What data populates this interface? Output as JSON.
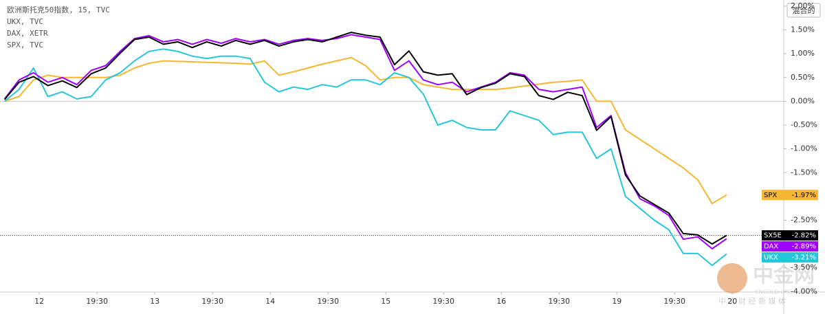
{
  "chart_data": {
    "type": "line",
    "toggle_label": "混合的",
    "watermark": {
      "brand": "中金网",
      "site": "CNGOLD.ORG",
      "slogan": "中 文 财 经 新 媒 体"
    },
    "xlim": [
      0.32,
      13.89
    ],
    "ylim": [
      -4.01,
      2.13
    ],
    "grid": false,
    "xticks": [
      {
        "value": 1,
        "label": "12"
      },
      {
        "value": 2,
        "label": "19:30"
      },
      {
        "value": 3,
        "label": "13"
      },
      {
        "value": 4,
        "label": "19:30"
      },
      {
        "value": 5,
        "label": "14"
      },
      {
        "value": 6,
        "label": "19:30"
      },
      {
        "value": 7,
        "label": "15"
      },
      {
        "value": 8,
        "label": "19:30"
      },
      {
        "value": 9,
        "label": "16"
      },
      {
        "value": 10,
        "label": "19:30"
      },
      {
        "value": 11,
        "label": "19"
      },
      {
        "value": 12,
        "label": "19:30"
      },
      {
        "value": 13,
        "label": "20"
      }
    ],
    "yticks": [
      {
        "value": 2,
        "label": "2.00%"
      },
      {
        "value": 1.5,
        "label": "1.50%"
      },
      {
        "value": 1,
        "label": "1.00%"
      },
      {
        "value": 0.5,
        "label": "0.50%"
      },
      {
        "value": 0,
        "label": "0.00%"
      },
      {
        "value": -0.5,
        "label": "-0.50%"
      },
      {
        "value": -1,
        "label": "-1.00%"
      },
      {
        "value": -1.5,
        "label": "-1.50%"
      },
      {
        "value": -2.5,
        "label": "-2.50%"
      },
      {
        "value": -3.5,
        "label": "-3.50%"
      },
      {
        "value": -4,
        "label": "-4.00%"
      }
    ],
    "x": [
      0.4,
      0.65,
      0.9,
      1.15,
      1.4,
      1.65,
      1.9,
      2.15,
      2.4,
      2.65,
      2.9,
      3.15,
      3.4,
      3.65,
      3.9,
      4.15,
      4.4,
      4.65,
      4.9,
      5.15,
      5.4,
      5.65,
      5.9,
      6.15,
      6.4,
      6.65,
      6.9,
      7.15,
      7.4,
      7.65,
      7.9,
      8.15,
      8.4,
      8.65,
      8.9,
      9.15,
      9.4,
      9.65,
      9.9,
      10.15,
      10.4,
      10.65,
      10.9,
      11.15,
      11.4,
      11.65,
      11.9,
      12.15,
      12.4,
      12.65,
      12.9
    ],
    "series": [
      {
        "name": "欧洲斯托克50指数, 15, TVC",
        "tag": "SX5E",
        "last_label": "-2.82%",
        "color": "#000000",
        "values": [
          0.04,
          0.4,
          0.52,
          0.33,
          0.43,
          0.29,
          0.58,
          0.7,
          1.01,
          1.3,
          1.35,
          1.2,
          1.25,
          1.13,
          1.25,
          1.16,
          1.28,
          1.2,
          1.28,
          1.16,
          1.25,
          1.3,
          1.25,
          1.35,
          1.45,
          1.39,
          1.35,
          0.77,
          1.06,
          0.62,
          0.55,
          0.58,
          0.14,
          0.29,
          0.38,
          0.58,
          0.52,
          0.12,
          0.04,
          0.19,
          0.12,
          -0.61,
          -0.32,
          -1.55,
          -1.99,
          -2.17,
          -2.35,
          -2.78,
          -2.81,
          -3.0,
          -2.82
        ]
      },
      {
        "name": "UKX, TVC",
        "tag": "UKX",
        "last_label": "-3.21%",
        "color": "#26c6da",
        "values": [
          0.0,
          0.25,
          0.7,
          0.1,
          0.2,
          0.05,
          0.1,
          0.45,
          0.6,
          0.85,
          1.05,
          1.1,
          1.05,
          0.95,
          0.9,
          0.95,
          0.95,
          0.9,
          0.4,
          0.2,
          0.3,
          0.25,
          0.35,
          0.3,
          0.45,
          0.45,
          0.35,
          0.6,
          0.5,
          0.15,
          -0.5,
          -0.4,
          -0.55,
          -0.6,
          -0.6,
          -0.2,
          -0.3,
          -0.4,
          -0.7,
          -0.65,
          -0.65,
          -1.2,
          -1.0,
          -2.0,
          -2.25,
          -2.5,
          -2.7,
          -3.2,
          -3.2,
          -3.45,
          -3.21
        ]
      },
      {
        "name": "DAX, XETR",
        "tag": "DAX",
        "last_label": "-2.89%",
        "color": "#a000ff",
        "values": [
          0.05,
          0.45,
          0.6,
          0.4,
          0.5,
          0.35,
          0.65,
          0.75,
          1.05,
          1.32,
          1.38,
          1.25,
          1.3,
          1.2,
          1.3,
          1.22,
          1.32,
          1.25,
          1.3,
          1.2,
          1.28,
          1.32,
          1.28,
          1.32,
          1.4,
          1.35,
          1.3,
          0.65,
          0.85,
          0.45,
          0.35,
          0.4,
          0.2,
          0.3,
          0.4,
          0.6,
          0.55,
          0.25,
          0.2,
          0.25,
          0.3,
          -0.55,
          -0.3,
          -1.5,
          -2.05,
          -2.2,
          -2.4,
          -2.9,
          -2.85,
          -3.1,
          -2.89
        ]
      },
      {
        "name": "SPX, TVC",
        "tag": "SPX",
        "last_label": "-1.97%",
        "color": "#f5b731",
        "values": [
          0.0,
          0.1,
          0.45,
          0.55,
          0.5,
          0.5,
          0.5,
          0.5,
          0.55,
          0.7,
          0.8,
          0.85,
          0.84,
          0.83,
          0.82,
          0.81,
          0.8,
          0.78,
          0.85,
          0.55,
          0.62,
          0.7,
          0.78,
          0.85,
          0.92,
          0.75,
          0.45,
          0.5,
          0.5,
          0.35,
          0.3,
          0.25,
          0.25,
          0.25,
          0.25,
          0.28,
          0.32,
          0.36,
          0.4,
          0.42,
          0.45,
          0.0,
          0.0,
          -0.6,
          -0.8,
          -1.0,
          -1.2,
          -1.4,
          -1.65,
          -2.15,
          -1.97
        ]
      }
    ]
  }
}
